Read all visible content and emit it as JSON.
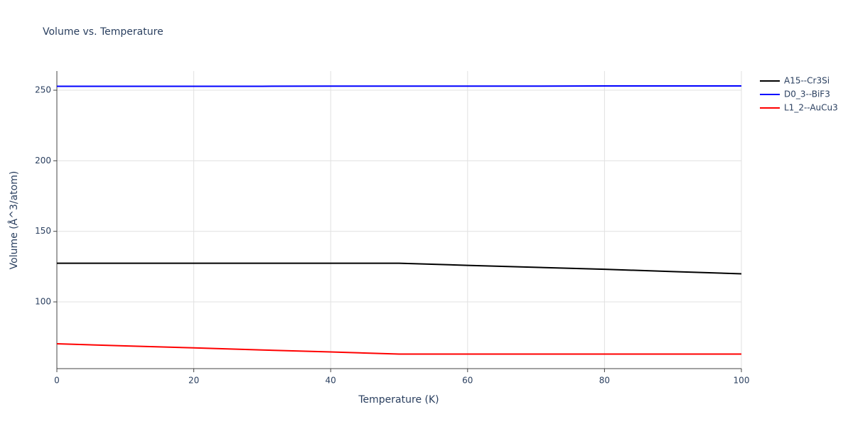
{
  "chart_data": {
    "type": "line",
    "title": "Volume vs. Temperature",
    "x_label": "Temperature (K)",
    "y_label": "Volume (Å^3/atom)",
    "x": [
      0,
      10,
      20,
      30,
      40,
      50,
      60,
      70,
      80,
      90,
      100
    ],
    "series": [
      {
        "name": "A15--Cr3Si",
        "color": "#000000",
        "values": [
          127.4,
          127.4,
          127.4,
          127.4,
          127.4,
          127.4,
          125.9,
          124.5,
          123.1,
          121.5,
          119.9
        ]
      },
      {
        "name": "D0_3--BiF3",
        "color": "#0000ff",
        "values": [
          252.8,
          252.8,
          252.8,
          252.8,
          252.9,
          252.9,
          252.9,
          252.9,
          253.0,
          253.0,
          253.0
        ]
      },
      {
        "name": "L1_2--AuCu3",
        "color": "#ff0000",
        "values": [
          70.3,
          68.8,
          67.4,
          65.9,
          64.5,
          63.0,
          63.0,
          63.0,
          63.0,
          63.0,
          63.0
        ]
      }
    ],
    "xlim": [
      0,
      100
    ],
    "xticks": [
      0,
      20,
      40,
      60,
      80,
      100
    ],
    "ylim": [
      52.7,
      263.6
    ],
    "yticks": [
      100,
      150,
      200,
      250
    ],
    "grid": true,
    "legend": "right"
  }
}
